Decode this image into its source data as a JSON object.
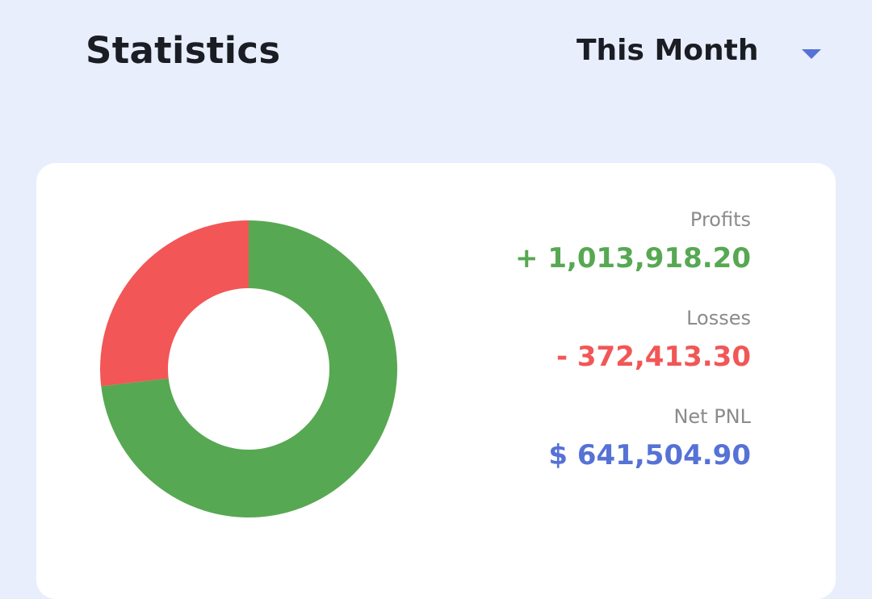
{
  "header": {
    "title": "Statistics",
    "period": "This Month"
  },
  "stats": {
    "profits": {
      "label": "Profits",
      "value": "+ 1,013,918.20"
    },
    "losses": {
      "label": "Losses",
      "value": "- 372,413.30"
    },
    "net_pnl": {
      "label": "Net PNL",
      "value": "$ 641,504.90"
    }
  },
  "chart_data": {
    "type": "pie",
    "categories": [
      "Profits",
      "Losses"
    ],
    "values": [
      1013918.2,
      372413.3
    ],
    "colors": [
      "#57a852",
      "#f25656"
    ]
  },
  "colors": {
    "background": "#e8eefb",
    "card": "#ffffff",
    "profit": "#57a852",
    "loss": "#f25656",
    "net": "#5672d6",
    "label": "#8b8b8b"
  }
}
